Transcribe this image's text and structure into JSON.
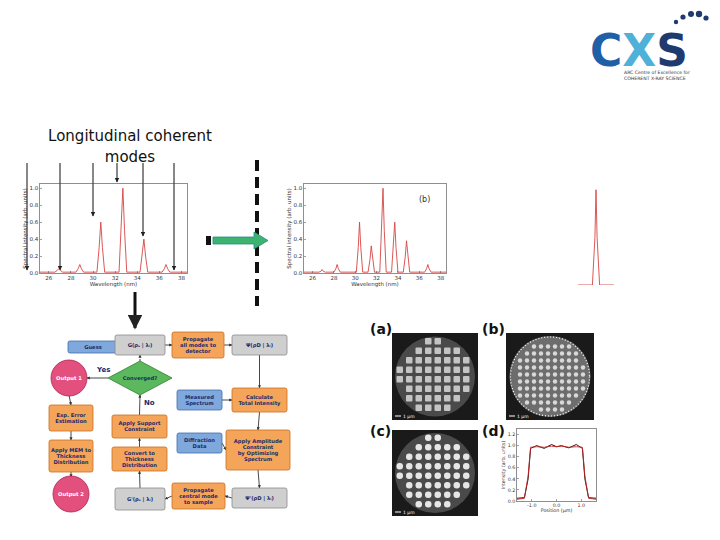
{
  "chart_data": [
    {
      "type": "line",
      "color": "#d64545",
      "grid": false,
      "xlabel": "Wavelength (nm)",
      "ylabel": "Spectral intensity (arb. units)",
      "x": [
        25.2,
        26.55,
        26.75,
        26.9,
        27.05,
        27.25,
        28.45,
        28.65,
        28.8,
        28.95,
        29.15,
        30.35,
        30.55,
        30.7,
        30.85,
        31.05,
        32.35,
        32.55,
        32.7,
        32.85,
        33.05,
        34.25,
        34.45,
        34.6,
        34.75,
        34.95,
        36.25,
        36.45,
        36.6,
        36.75,
        36.95,
        38.5
      ],
      "values": [
        0.01,
        0.01,
        0.03,
        0.05,
        0.03,
        0.01,
        0.01,
        0.05,
        0.1,
        0.05,
        0.01,
        0.01,
        0.3,
        0.6,
        0.3,
        0.01,
        0.01,
        0.5,
        1.0,
        0.5,
        0.01,
        0.01,
        0.2,
        0.4,
        0.2,
        0.01,
        0.01,
        0.05,
        0.1,
        0.05,
        0.01,
        0.01
      ],
      "xlim": [
        25.2,
        38.5
      ],
      "xticks": [
        26,
        28,
        30,
        32,
        34,
        36,
        38
      ],
      "ylim": [
        0,
        1.05
      ],
      "yticks": [
        {
          "value": 0,
          "label": "0.0"
        },
        0.2,
        0.4,
        0.6,
        0.8,
        {
          "value": 1,
          "label": "1.0"
        }
      ]
    },
    {
      "type": "line",
      "color": "#d64545",
      "grid": false,
      "annotation": "(b)",
      "xlabel": "Wavelength (nm)",
      "ylabel": "Spectral intensity (arb. units)",
      "x": [
        25.2,
        26.6,
        26.78,
        26.9,
        27.02,
        27.2,
        28.0,
        28.18,
        28.3,
        28.42,
        28.6,
        30.1,
        30.28,
        30.4,
        30.52,
        30.7,
        31.2,
        31.38,
        31.5,
        31.62,
        31.8,
        32.3,
        32.48,
        32.6,
        32.72,
        32.9,
        33.4,
        33.58,
        33.7,
        33.82,
        34.0,
        34.5,
        34.68,
        34.8,
        34.92,
        35.1,
        36.5,
        36.68,
        36.8,
        36.92,
        37.1,
        38.5
      ],
      "values": [
        0.01,
        0.01,
        0.02,
        0.04,
        0.02,
        0.01,
        0.01,
        0.05,
        0.1,
        0.05,
        0.01,
        0.01,
        0.3,
        0.6,
        0.3,
        0.01,
        0.01,
        0.16,
        0.32,
        0.16,
        0.01,
        0.01,
        0.5,
        1.0,
        0.5,
        0.01,
        0.01,
        0.3,
        0.6,
        0.3,
        0.01,
        0.01,
        0.19,
        0.38,
        0.19,
        0.01,
        0.01,
        0.05,
        0.1,
        0.05,
        0.01,
        0.01
      ],
      "xlim": [
        25.2,
        38.5
      ],
      "xticks": [
        26,
        28,
        30,
        32,
        34,
        36,
        38
      ],
      "ylim": [
        0,
        1.05
      ],
      "yticks": [
        {
          "value": 0,
          "label": "0.0"
        },
        0.2,
        0.4,
        0.6,
        0.8,
        {
          "value": 1,
          "label": "1.0"
        }
      ]
    },
    {
      "type": "line",
      "color": "#d64545",
      "grid": false,
      "tick_labels": false,
      "x": [
        0,
        0.4,
        0.47,
        0.5,
        0.53,
        0.6,
        1
      ],
      "values": [
        0,
        0,
        0.5,
        1.0,
        0.5,
        0,
        0
      ],
      "xlim": [
        0,
        1
      ],
      "ylim": [
        0,
        1.05
      ]
    },
    {
      "type": "line",
      "grid": false,
      "xlabel": "Position (μm)",
      "ylabel": "Intensity (arb. units)",
      "x": [
        -1.6,
        -1.3,
        -1.15,
        -1.05,
        -0.8,
        -0.5,
        -0.2,
        0,
        0.2,
        0.5,
        0.8,
        1.05,
        1.15,
        1.3,
        1.6
      ],
      "series": [
        {
          "color": "#000000",
          "values": [
            0.05,
            0.06,
            0.4,
            0.95,
            1.0,
            0.95,
            1.02,
            0.98,
            1.0,
            0.96,
            1.02,
            0.95,
            0.4,
            0.06,
            0.05
          ]
        },
        {
          "color": "#cc2222",
          "values": [
            0.03,
            0.05,
            0.45,
            0.97,
            0.98,
            0.97,
            0.99,
            0.98,
            0.99,
            0.97,
            0.98,
            0.97,
            0.45,
            0.05,
            0.03
          ]
        }
      ],
      "xlim": [
        -1.6,
        1.6
      ],
      "xticks": [
        {
          "value": -1,
          "label": "-1.0"
        },
        {
          "value": 0,
          "label": "0.0"
        },
        {
          "value": 1,
          "label": "1.0"
        }
      ],
      "ylim": [
        0,
        1.3
      ],
      "yticks": [
        {
          "value": 0,
          "label": "0.0"
        },
        0.2,
        0.4,
        0.6,
        0.8,
        {
          "value": 1,
          "label": "1.0"
        },
        1.2
      ]
    }
  ],
  "slide": {
    "heading": [
      "Longitudinal coherent",
      "modes"
    ],
    "logo": {
      "mark": "CXS",
      "lines": [
        "ARC Centre of Excellence for",
        "COHERENT X-RAY SCIENCE"
      ]
    },
    "flowchart": {
      "nodes": [
        {
          "lines": [
            "Guess"
          ]
        },
        {
          "lines": [
            "G(ρₛ | λᵢ)"
          ]
        },
        {
          "lines": [
            "Propagate",
            "all modes to",
            "detector"
          ]
        },
        {
          "lines": [
            "Ψ(ρD | λᵢ)"
          ]
        },
        {
          "lines": [
            "Converged?"
          ]
        },
        {
          "lines": [
            "Output 1"
          ]
        },
        {
          "lines": [
            "Measured",
            "Spectrum"
          ]
        },
        {
          "lines": [
            "Calculate",
            "Total Intensity"
          ]
        },
        {
          "lines": [
            "Exp. Error",
            "Estimation"
          ]
        },
        {
          "lines": [
            "Apply Support",
            "Constraint"
          ]
        },
        {
          "lines": [
            "Diffraction",
            "Data"
          ]
        },
        {
          "lines": [
            "Apply Amplitude",
            "Constraint",
            "by Optimizing",
            "Spectrum"
          ]
        },
        {
          "lines": [
            "Apply MEM to",
            "Thickness",
            "Distribution"
          ]
        },
        {
          "lines": [
            "Convert to",
            "Thickness",
            "Distribution"
          ]
        },
        {
          "lines": [
            "Output 2"
          ]
        },
        {
          "lines": [
            "G'(ρₛ | λᵢ)"
          ]
        },
        {
          "lines": [
            "Propagate",
            "central mode",
            "to sample"
          ]
        },
        {
          "lines": [
            "Ψ'(ρD | λᵢ)"
          ]
        }
      ],
      "edge_labels": [
        "Yes",
        "No"
      ]
    },
    "images": {
      "labels": [
        "(a)",
        "(b)",
        "(c)",
        "(d)"
      ],
      "scale_bar": "1 μm"
    }
  }
}
